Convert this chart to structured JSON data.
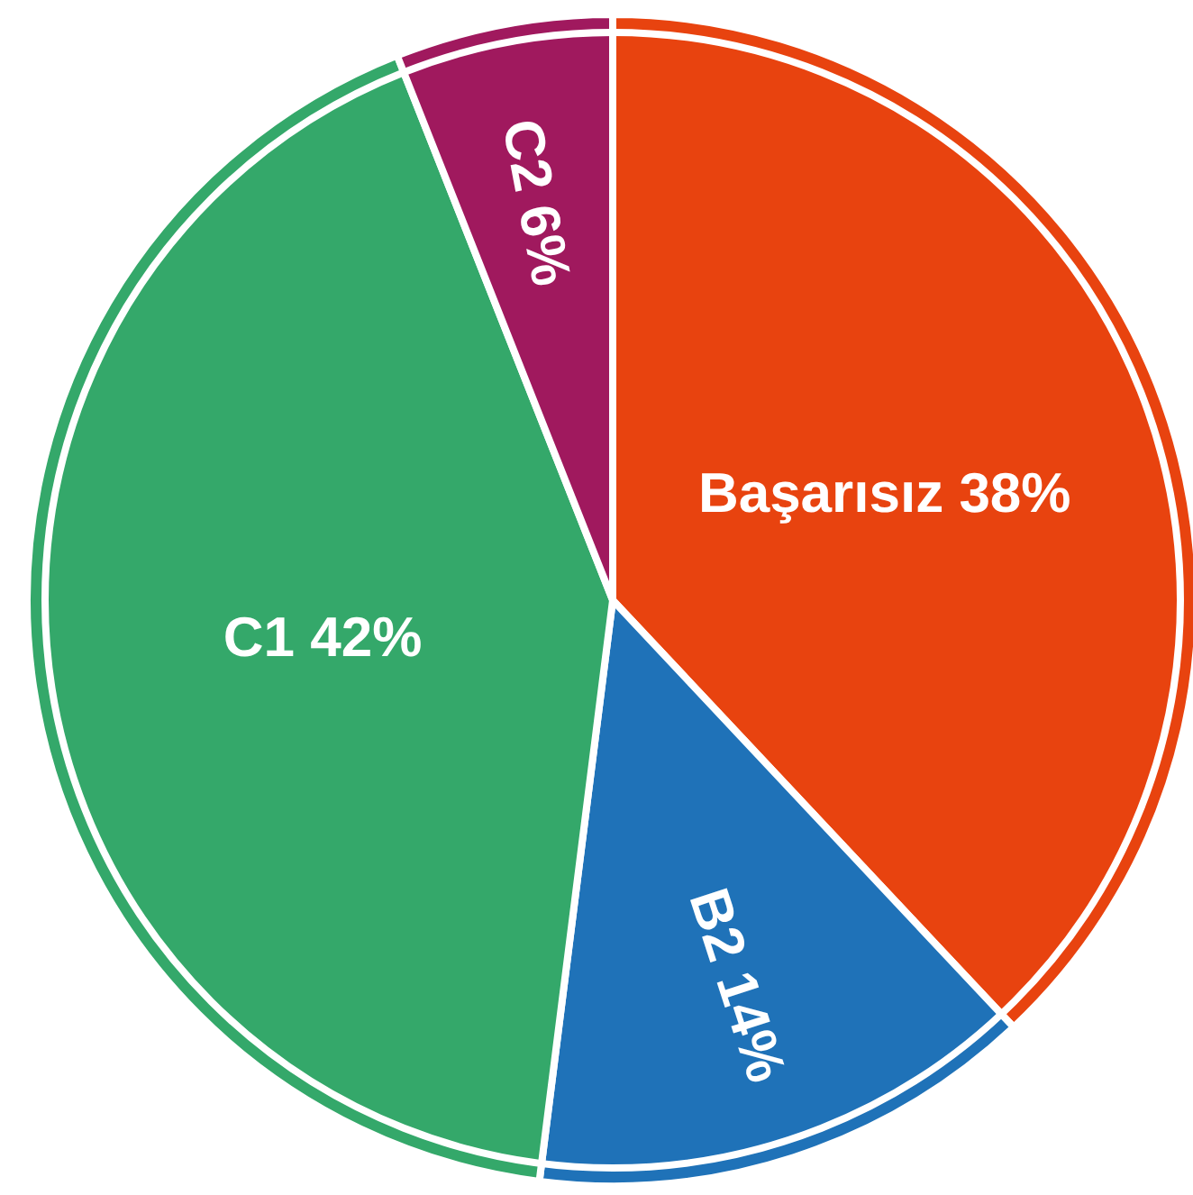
{
  "chart_data": {
    "type": "pie",
    "categories": [
      "Başarısız",
      "B2",
      "C1",
      "C2"
    ],
    "values": [
      38,
      14,
      42,
      6
    ],
    "colors": [
      "#e8430f",
      "#1f72b8",
      "#34a86a",
      "#a0195e"
    ],
    "value_labels": [
      "38%",
      "14%",
      "42%",
      "6%"
    ]
  }
}
